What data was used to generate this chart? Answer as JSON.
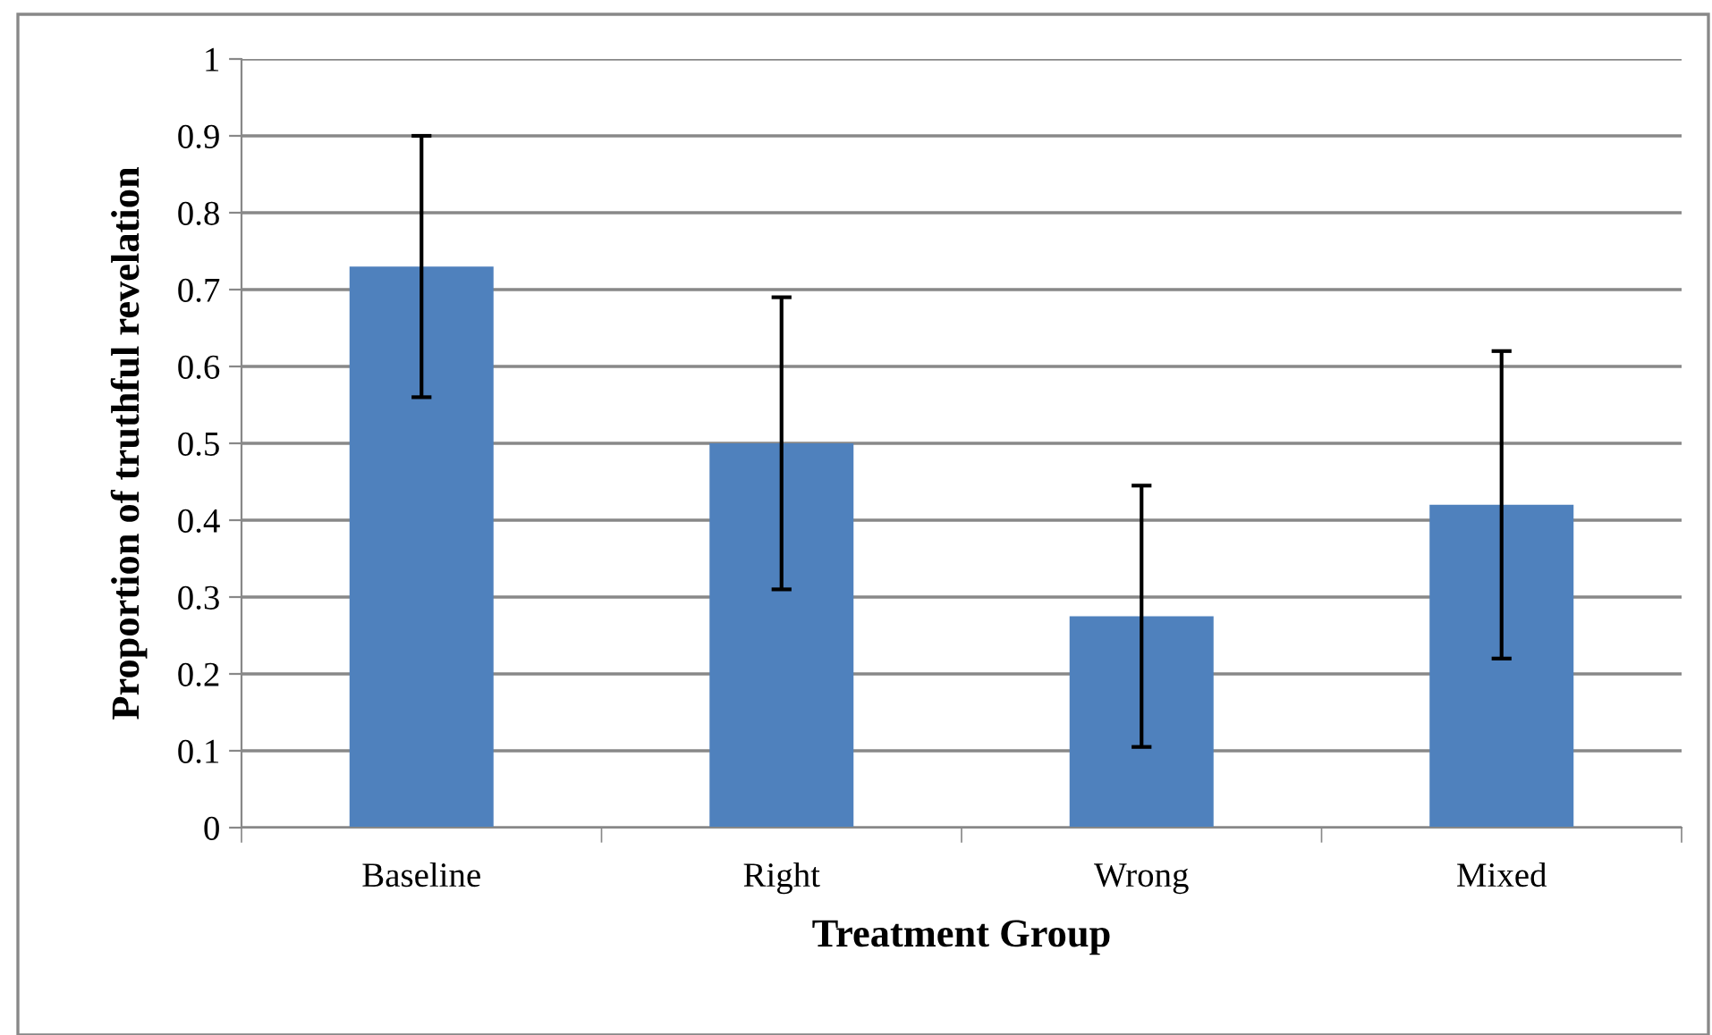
{
  "chart_data": {
    "type": "bar",
    "xlabel": "Treatment Group",
    "ylabel": "Proportion of truthful revelation",
    "categories": [
      "Baseline",
      "Right",
      "Wrong",
      "Mixed"
    ],
    "values": [
      0.73,
      0.5,
      0.275,
      0.42
    ],
    "errors": [
      0.17,
      0.19,
      0.17,
      0.2
    ],
    "color": "#4f81bd",
    "ylim": [
      0,
      1
    ],
    "yticks": [
      0,
      0.1,
      0.2,
      0.3,
      0.4,
      0.5,
      0.6,
      0.7,
      0.8,
      0.9,
      1
    ],
    "grid": "y",
    "legend": false
  }
}
